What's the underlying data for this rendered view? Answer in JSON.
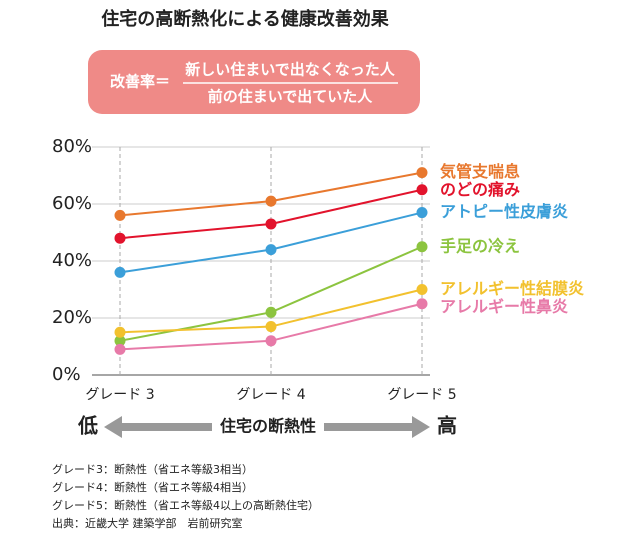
{
  "chart_data": {
    "type": "line",
    "title": "住宅の高断熱化による健康改善効果",
    "categories": [
      "グレード 3",
      "グレード 4",
      "グレード 5"
    ],
    "ylim": [
      0,
      80
    ],
    "yticks": [
      {
        "value": 0,
        "label": "0%"
      },
      {
        "value": 20,
        "label": "20%"
      },
      {
        "value": 40,
        "label": "40%"
      },
      {
        "value": 60,
        "label": "60%"
      },
      {
        "value": 80,
        "label": "80%"
      }
    ],
    "grid": true,
    "series": [
      {
        "name": "気管支喘息",
        "color": "#e8782e",
        "values": [
          56,
          61,
          71
        ]
      },
      {
        "name": "のどの痛み",
        "color": "#e2132c",
        "values": [
          48,
          53,
          65
        ]
      },
      {
        "name": "アトピー性皮膚炎",
        "color": "#3b9fd9",
        "values": [
          36,
          44,
          57
        ]
      },
      {
        "name": "手足の冷え",
        "color": "#8cc43f",
        "values": [
          12,
          22,
          45
        ]
      },
      {
        "name": "アレルギー性結膜炎",
        "color": "#f2c12e",
        "values": [
          15,
          17,
          30
        ]
      },
      {
        "name": "アレルギー性鼻炎",
        "color": "#e77aa8",
        "values": [
          9,
          12,
          25
        ]
      }
    ]
  },
  "formula": {
    "label": "改善率＝",
    "numerator": "新しい住まいで出なくなった人",
    "denominator": "前の住まいで出ていた人"
  },
  "scale": {
    "low": "低",
    "label": "住宅の断熱性",
    "high": "高"
  },
  "notes": [
    "グレード3：断熱性（省エネ等級3相当）",
    "グレード4：断熱性（省エネ等級4相当）",
    "グレード5：断熱性（省エネ等級4以上の高断熱住宅）",
    "出典：近畿大学 建築学部　岩前研究室"
  ]
}
